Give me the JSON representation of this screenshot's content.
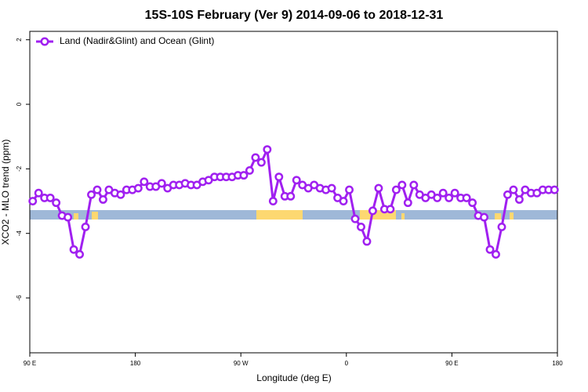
{
  "chart_data": {
    "type": "line",
    "title": "15S-10S February (Ver 9)   2014-09-06 to 2018-12-31",
    "xlabel": "Longitude (deg E)",
    "ylabel": "XCO2 - MLO trend (ppm)",
    "x": [
      92.5,
      97.5,
      102.5,
      107.5,
      112.5,
      117.5,
      122.5,
      127.5,
      132.5,
      137.5,
      142.5,
      147.5,
      152.5,
      157.5,
      162.5,
      167.5,
      172.5,
      177.5,
      182.5,
      187.5,
      192.5,
      197.5,
      202.5,
      207.5,
      212.5,
      217.5,
      222.5,
      227.5,
      232.5,
      237.5,
      242.5,
      247.5,
      252.5,
      257.5,
      262.5,
      267.5,
      272.5,
      277.5,
      282.5,
      287.5,
      292.5,
      297.5,
      302.5,
      307.5,
      312.5,
      317.5,
      322.5,
      327.5,
      332.5,
      337.5,
      342.5,
      347.5,
      352.5,
      357.5,
      362.5,
      367.5,
      372.5,
      377.5,
      382.5,
      387.5,
      392.5,
      397.5,
      402.5,
      407.5,
      412.5,
      417.5,
      422.5,
      427.5,
      432.5,
      437.5,
      442.5,
      447.5,
      452.5,
      457.5,
      462.5,
      467.5,
      472.5,
      477.5,
      482.5,
      487.5,
      492.5,
      497.5,
      502.5,
      507.5,
      512.5,
      517.5,
      522.5,
      527.5,
      532.5,
      537.5
    ],
    "series": [
      {
        "name": "Land (Nadir&Glint) and Ocean (Glint)",
        "color": "#a020f0",
        "values": [
          -3.0,
          -2.75,
          -2.9,
          -2.9,
          -3.05,
          -3.45,
          -3.5,
          -4.5,
          -4.65,
          -3.8,
          -2.8,
          -2.65,
          -2.95,
          -2.65,
          -2.75,
          -2.8,
          -2.65,
          -2.65,
          -2.6,
          -2.4,
          -2.55,
          -2.55,
          -2.45,
          -2.6,
          -2.5,
          -2.5,
          -2.45,
          -2.5,
          -2.5,
          -2.4,
          -2.35,
          -2.25,
          -2.25,
          -2.25,
          -2.25,
          -2.2,
          -2.2,
          -2.05,
          -1.65,
          -1.8,
          -1.4,
          -3.0,
          -2.25,
          -2.85,
          -2.85,
          -2.35,
          -2.5,
          -2.6,
          -2.5,
          -2.6,
          -2.65,
          -2.6,
          -2.9,
          -3.0,
          -2.65,
          -3.55,
          -3.8,
          -4.25,
          -3.3,
          -2.6,
          -3.25,
          -3.25,
          -2.65,
          -2.5,
          -3.05,
          -2.5,
          -2.8,
          -2.9,
          -2.8,
          -2.9,
          -2.75,
          -2.9,
          -2.75,
          -2.9,
          -2.9,
          -3.05,
          -3.45,
          -3.5,
          -4.5,
          -4.65,
          -3.8,
          -2.8,
          -2.65,
          -2.95,
          -2.65,
          -2.75,
          -2.75,
          -2.65,
          -2.65,
          -2.65
        ]
      }
    ],
    "xlim": [
      90,
      540
    ],
    "xticks": [
      {
        "value": 90,
        "label": "90 E"
      },
      180,
      {
        "value": 270,
        "label": "90 W"
      },
      {
        "value": 360,
        "label": "0"
      },
      {
        "value": 450,
        "label": "90 E"
      },
      180
    ],
    "ylim": [
      -7.7,
      2.26
    ],
    "yticks": [
      2,
      0,
      -2,
      -4,
      -6
    ],
    "legend": "top-left"
  }
}
